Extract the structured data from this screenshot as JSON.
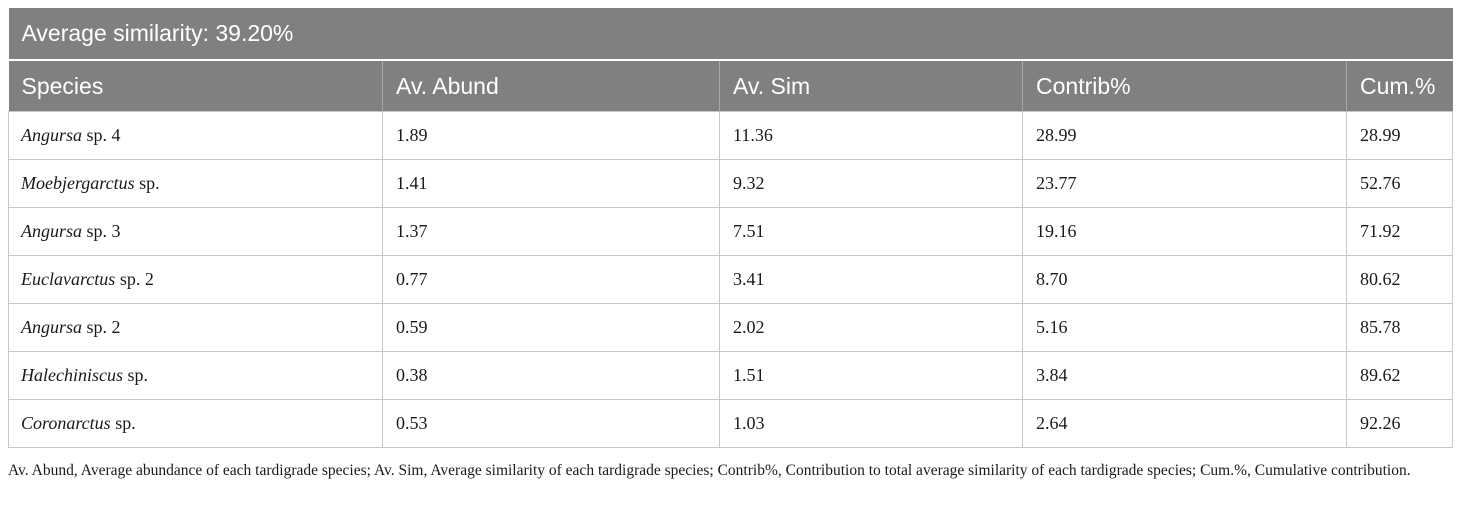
{
  "table": {
    "title": "Average similarity: 39.20%",
    "headers": [
      "Species",
      "Av. Abund",
      "Av. Sim",
      "Contrib%",
      "Cum.%"
    ],
    "rows": [
      {
        "genus": "Angursa",
        "suffix": " sp. 4",
        "av_abund": "1.89",
        "av_sim": "11.36",
        "contrib": "28.99",
        "cum": "28.99"
      },
      {
        "genus": "Moebjergarctus",
        "suffix": " sp.",
        "av_abund": "1.41",
        "av_sim": "9.32",
        "contrib": "23.77",
        "cum": "52.76"
      },
      {
        "genus": "Angursa",
        "suffix": " sp. 3",
        "av_abund": "1.37",
        "av_sim": "7.51",
        "contrib": "19.16",
        "cum": "71.92"
      },
      {
        "genus": "Euclavarctus",
        "suffix": " sp. 2",
        "av_abund": "0.77",
        "av_sim": "3.41",
        "contrib": "8.70",
        "cum": "80.62"
      },
      {
        "genus": "Angursa",
        "suffix": " sp. 2",
        "av_abund": "0.59",
        "av_sim": "2.02",
        "contrib": "5.16",
        "cum": "85.78"
      },
      {
        "genus": "Halechiniscus",
        "suffix": " sp.",
        "av_abund": "0.38",
        "av_sim": "1.51",
        "contrib": "3.84",
        "cum": "89.62"
      },
      {
        "genus": "Coronarctus",
        "suffix": " sp.",
        "av_abund": "0.53",
        "av_sim": "1.03",
        "contrib": "2.64",
        "cum": "92.26"
      }
    ]
  },
  "footnote": "Av. Abund, Average abundance of each tardigrade species; Av. Sim, Average similarity of each tardigrade species; Contrib%, Contribution to total average similarity of each tardigrade species; Cum.%, Cumulative contribution."
}
